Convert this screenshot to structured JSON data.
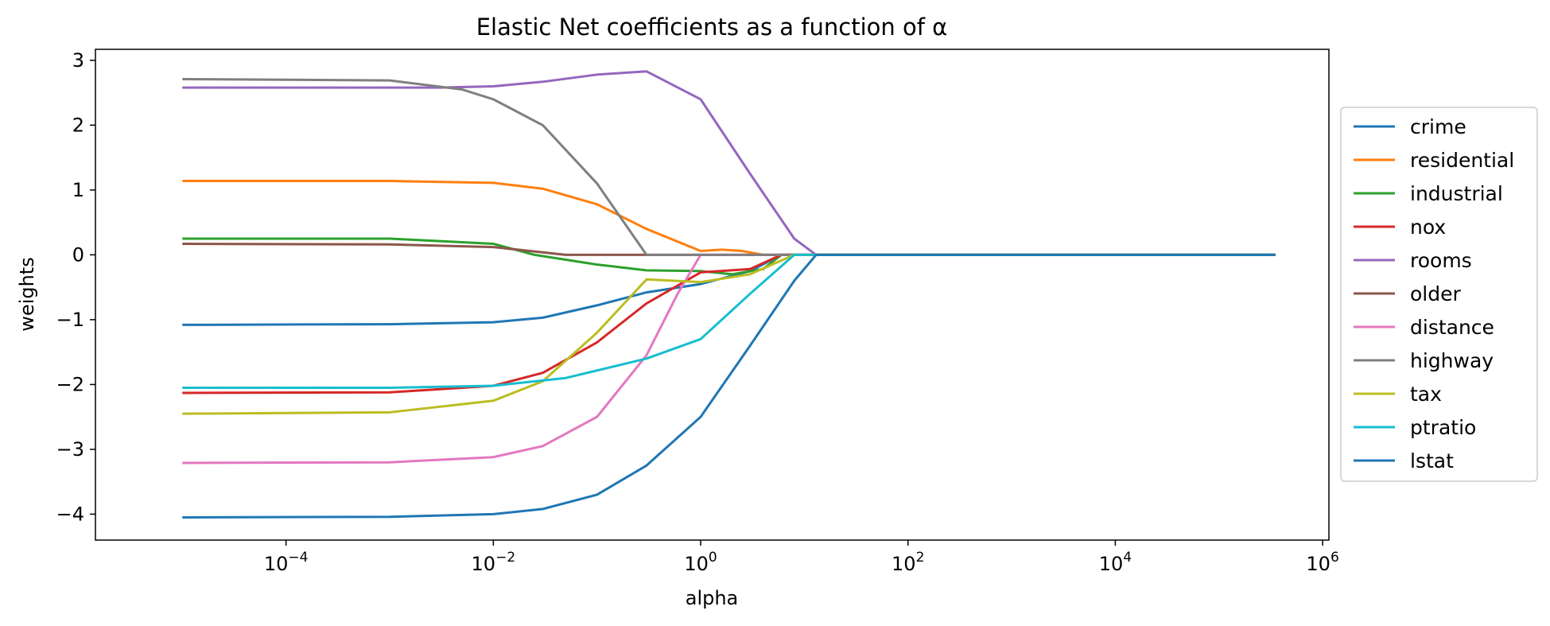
{
  "chart_data": {
    "type": "line",
    "title": "Elastic Net coefficients as a function of α",
    "xlabel": "alpha",
    "ylabel": "weights",
    "x_scale": "log",
    "xlim": [
      1.45e-06,
      1150000
    ],
    "ylim": [
      -4.4,
      3.17
    ],
    "x_ticks": [
      {
        "value": 0.0001,
        "base": "10",
        "exp": "−4"
      },
      {
        "value": 0.01,
        "base": "10",
        "exp": "−2"
      },
      {
        "value": 1,
        "base": "10",
        "exp": "0"
      },
      {
        "value": 100,
        "base": "10",
        "exp": "2"
      },
      {
        "value": 10000,
        "base": "10",
        "exp": "4"
      },
      {
        "value": 1000000,
        "base": "10",
        "exp": "6"
      }
    ],
    "y_ticks": [
      {
        "value": 3,
        "label": "3"
      },
      {
        "value": 2,
        "label": "2"
      },
      {
        "value": 1,
        "label": "1"
      },
      {
        "value": 0,
        "label": "0"
      },
      {
        "value": -1,
        "label": "−1"
      },
      {
        "value": -2,
        "label": "−2"
      },
      {
        "value": -3,
        "label": "−3"
      },
      {
        "value": -4,
        "label": "−4"
      }
    ],
    "grid": false,
    "legend_position": "outside-right",
    "series": [
      {
        "name": "crime",
        "color": "#1f77b4",
        "points": [
          [
            1e-05,
            -1.08
          ],
          [
            0.001,
            -1.07
          ],
          [
            0.01,
            -1.04
          ],
          [
            0.03,
            -0.97
          ],
          [
            0.1,
            -0.78
          ],
          [
            0.3,
            -0.58
          ],
          [
            1,
            -0.45
          ],
          [
            3,
            -0.25
          ],
          [
            6,
            0
          ],
          [
            350000,
            0
          ]
        ]
      },
      {
        "name": "residential",
        "color": "#ff7f0e",
        "points": [
          [
            1e-05,
            1.14
          ],
          [
            0.001,
            1.14
          ],
          [
            0.01,
            1.11
          ],
          [
            0.03,
            1.02
          ],
          [
            0.1,
            0.78
          ],
          [
            0.3,
            0.4
          ],
          [
            1,
            0.06
          ],
          [
            1.6,
            0.08
          ],
          [
            2.5,
            0.06
          ],
          [
            4,
            0
          ],
          [
            350000,
            0
          ]
        ]
      },
      {
        "name": "industrial",
        "color": "#2ca02c",
        "points": [
          [
            1e-05,
            0.25
          ],
          [
            0.001,
            0.25
          ],
          [
            0.01,
            0.17
          ],
          [
            0.025,
            0.0
          ],
          [
            0.1,
            -0.15
          ],
          [
            0.3,
            -0.24
          ],
          [
            1,
            -0.25
          ],
          [
            2,
            -0.3
          ],
          [
            4,
            -0.22
          ],
          [
            6,
            0
          ],
          [
            350000,
            0
          ]
        ]
      },
      {
        "name": "nox",
        "color": "#d62728",
        "points": [
          [
            1e-05,
            -2.13
          ],
          [
            0.001,
            -2.12
          ],
          [
            0.01,
            -2.02
          ],
          [
            0.03,
            -1.82
          ],
          [
            0.1,
            -1.35
          ],
          [
            0.3,
            -0.75
          ],
          [
            1,
            -0.27
          ],
          [
            3,
            -0.22
          ],
          [
            6,
            0
          ],
          [
            350000,
            0
          ]
        ]
      },
      {
        "name": "rooms",
        "color": "#9467bd",
        "points": [
          [
            1e-05,
            2.58
          ],
          [
            0.003,
            2.58
          ],
          [
            0.01,
            2.6
          ],
          [
            0.03,
            2.67
          ],
          [
            0.1,
            2.78
          ],
          [
            0.3,
            2.83
          ],
          [
            1,
            2.4
          ],
          [
            3,
            1.25
          ],
          [
            8,
            0.25
          ],
          [
            13,
            0
          ],
          [
            350000,
            0
          ]
        ]
      },
      {
        "name": "older",
        "color": "#8c564b",
        "points": [
          [
            1e-05,
            0.17
          ],
          [
            0.001,
            0.16
          ],
          [
            0.01,
            0.12
          ],
          [
            0.05,
            0
          ],
          [
            350000,
            0
          ]
        ]
      },
      {
        "name": "distance",
        "color": "#e377c2",
        "points": [
          [
            1e-05,
            -3.21
          ],
          [
            0.001,
            -3.2
          ],
          [
            0.01,
            -3.12
          ],
          [
            0.03,
            -2.95
          ],
          [
            0.1,
            -2.5
          ],
          [
            0.3,
            -1.55
          ],
          [
            0.6,
            -0.6
          ],
          [
            1,
            0
          ],
          [
            350000,
            0
          ]
        ]
      },
      {
        "name": "highway",
        "color": "#7f7f7f",
        "points": [
          [
            1e-05,
            2.71
          ],
          [
            0.001,
            2.69
          ],
          [
            0.005,
            2.55
          ],
          [
            0.01,
            2.4
          ],
          [
            0.03,
            2.0
          ],
          [
            0.1,
            1.1
          ],
          [
            0.3,
            0
          ],
          [
            350000,
            0
          ]
        ]
      },
      {
        "name": "tax",
        "color": "#bcbd22",
        "points": [
          [
            1e-05,
            -2.45
          ],
          [
            0.001,
            -2.43
          ],
          [
            0.01,
            -2.25
          ],
          [
            0.03,
            -1.95
          ],
          [
            0.1,
            -1.2
          ],
          [
            0.3,
            -0.38
          ],
          [
            1,
            -0.42
          ],
          [
            3,
            -0.3
          ],
          [
            8,
            0
          ],
          [
            350000,
            0
          ]
        ]
      },
      {
        "name": "ptratio",
        "color": "#17becf",
        "points": [
          [
            1e-05,
            -2.05
          ],
          [
            0.001,
            -2.05
          ],
          [
            0.01,
            -2.02
          ],
          [
            0.05,
            -1.9
          ],
          [
            0.3,
            -1.6
          ],
          [
            1,
            -1.3
          ],
          [
            3,
            -0.6
          ],
          [
            8,
            0
          ],
          [
            350000,
            0
          ]
        ]
      },
      {
        "name": "lstat",
        "color": "#1f77b4",
        "points": [
          [
            1e-05,
            -4.05
          ],
          [
            0.001,
            -4.04
          ],
          [
            0.01,
            -4.0
          ],
          [
            0.03,
            -3.92
          ],
          [
            0.1,
            -3.7
          ],
          [
            0.3,
            -3.25
          ],
          [
            1,
            -2.5
          ],
          [
            3,
            -1.4
          ],
          [
            8,
            -0.4
          ],
          [
            13,
            0
          ],
          [
            350000,
            0
          ]
        ]
      }
    ]
  }
}
